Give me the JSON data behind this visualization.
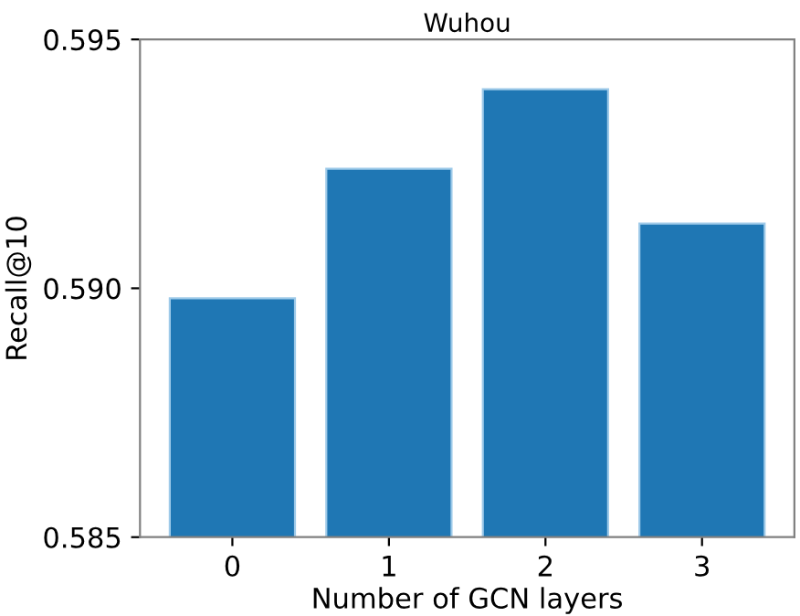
{
  "chart_data": {
    "type": "bar",
    "title": "Wuhou",
    "xlabel": "Number of GCN layers",
    "ylabel": "Recall@10",
    "categories": [
      "0",
      "1",
      "2",
      "3"
    ],
    "values": [
      0.5898,
      0.5924,
      0.594,
      0.5913
    ],
    "color": "#1f77b4",
    "ylim": [
      0.585,
      0.595
    ],
    "yticks": [
      {
        "value": 0.585,
        "label": "0.585"
      },
      {
        "value": 0.59,
        "label": "0.590"
      },
      {
        "value": 0.595,
        "label": "0.595"
      }
    ],
    "grid": false
  }
}
